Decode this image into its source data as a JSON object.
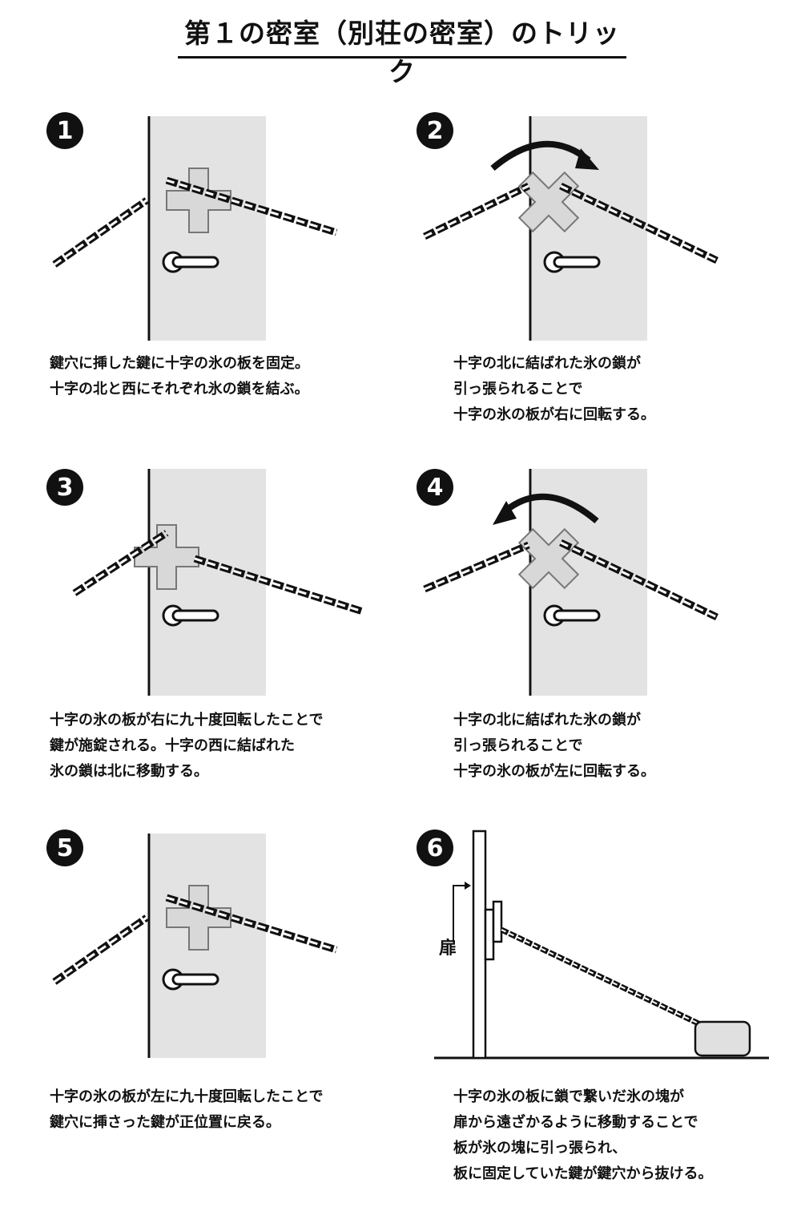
{
  "title": "第１の密室（別荘の密室）のトリック",
  "door_label": "扉",
  "panels": [
    {
      "number": "1",
      "caption": [
        "鍵穴に挿した鍵に十字の氷の板を固定。",
        "十字の北と西にそれぞれ氷の鎖を結ぶ。"
      ]
    },
    {
      "number": "2",
      "caption": [
        "十字の北に結ばれた氷の鎖が",
        "引っ張られることで",
        "十字の氷の板が右に回転する。"
      ]
    },
    {
      "number": "3",
      "caption": [
        "十字の氷の板が右に九十度回転したことで",
        "鍵が施錠される。十字の西に結ばれた",
        "氷の鎖は北に移動する。"
      ]
    },
    {
      "number": "4",
      "caption": [
        "十字の北に結ばれた氷の鎖が",
        "引っ張られることで",
        "十字の氷の板が左に回転する。"
      ]
    },
    {
      "number": "5",
      "caption": [
        "十字の氷の板が左に九十度回転したことで",
        "鍵穴に挿さった鍵が正位置に戻る。"
      ]
    },
    {
      "number": "6",
      "caption": [
        "十字の氷の板に鎖で繋いだ氷の塊が",
        "扉から遠ざかるように移動することで",
        "板が氷の塊に引っ張られ、",
        "板に固定していた鍵が鍵穴から抜ける。"
      ]
    }
  ]
}
